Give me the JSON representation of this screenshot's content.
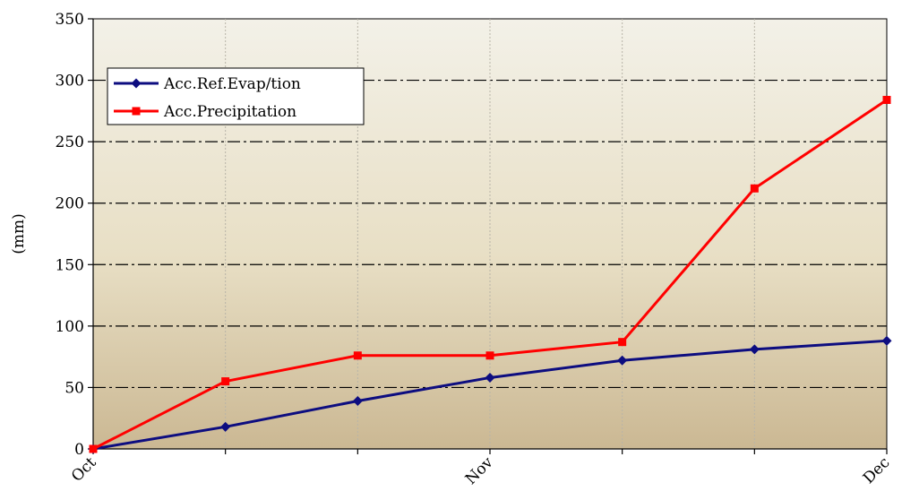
{
  "chart_data": {
    "type": "line",
    "x_labels": [
      "Oct",
      "Nov",
      "Dec"
    ],
    "ylabel": "(mm)",
    "ylim": [
      0,
      350
    ],
    "yticks": [
      0,
      50,
      100,
      150,
      200,
      250,
      300,
      350
    ],
    "grid": true,
    "legend_position": "top-left",
    "series": [
      {
        "name": "Acc.Ref.Evap/tion",
        "color": "#0d0d80",
        "marker": "diamond",
        "values": [
          0,
          18,
          39,
          58,
          72,
          81,
          88
        ]
      },
      {
        "name": "Acc.Precipitation",
        "color": "#ff0000",
        "marker": "square",
        "values": [
          0,
          55,
          76,
          76,
          87,
          212,
          284
        ]
      }
    ],
    "background_gradient": [
      "#f3f1e8",
      "#e8dfc5",
      "#cbb893"
    ]
  }
}
